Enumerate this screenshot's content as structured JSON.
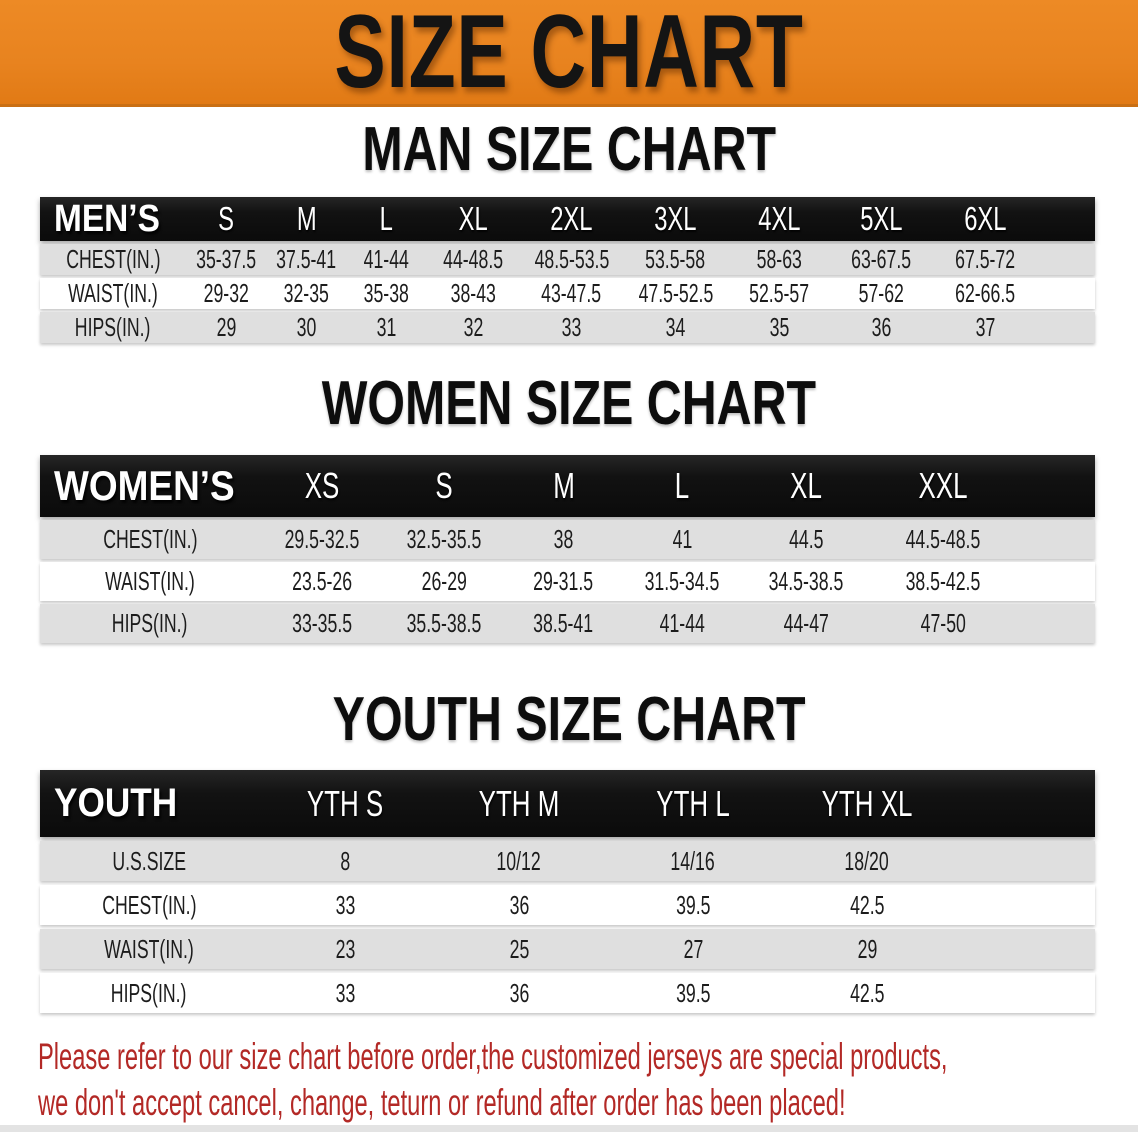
{
  "banner": {
    "title": "SIZE CHART"
  },
  "colors": {
    "banner_orange": "#E8831F",
    "table_header_black": "#111111",
    "row_gray": "#DFDFDF",
    "disclaimer_red": "#B32926"
  },
  "sections": [
    {
      "id": "mens",
      "heading": "MAN SIZE CHART",
      "corner": "MEN’S",
      "columns": [
        "S",
        "M",
        "L",
        "XL",
        "2XL",
        "3XL",
        "4XL",
        "5XL",
        "6XL"
      ],
      "rows": [
        {
          "label": "CHEST(IN.)",
          "values": [
            "35-37.5",
            "37.5-41",
            "41-44",
            "44-48.5",
            "48.5-53.5",
            "53.5-58",
            "58-63",
            "63-67.5",
            "67.5-72"
          ]
        },
        {
          "label": "WAIST(IN.)",
          "values": [
            "29-32",
            "32-35",
            "35-38",
            "38-43",
            "43-47.5",
            "47.5-52.5",
            "52.5-57",
            "57-62",
            "62-66.5"
          ]
        },
        {
          "label": "HIPS(IN.)",
          "values": [
            "29",
            "30",
            "31",
            "32",
            "33",
            "34",
            "35",
            "36",
            "37"
          ]
        }
      ]
    },
    {
      "id": "womens",
      "heading": "WOMEN SIZE CHART",
      "corner": "WOMEN’S",
      "columns": [
        "XS",
        "S",
        "M",
        "L",
        "XL",
        "XXL"
      ],
      "rows": [
        {
          "label": "CHEST(IN.)",
          "values": [
            "29.5-32.5",
            "32.5-35.5",
            "38",
            "41",
            "44.5",
            "44.5-48.5"
          ]
        },
        {
          "label": "WAIST(IN.)",
          "values": [
            "23.5-26",
            "26-29",
            "29-31.5",
            "31.5-34.5",
            "34.5-38.5",
            "38.5-42.5"
          ]
        },
        {
          "label": "HIPS(IN.)",
          "values": [
            "33-35.5",
            "35.5-38.5",
            "38.5-41",
            "41-44",
            "44-47",
            "47-50"
          ]
        }
      ]
    },
    {
      "id": "youth",
      "heading": "YOUTH SIZE CHART",
      "corner": "YOUTH",
      "columns": [
        "YTH S",
        "YTH M",
        "YTH L",
        "YTH XL"
      ],
      "rows": [
        {
          "label": "U.S.SIZE",
          "values": [
            "8",
            "10/12",
            "14/16",
            "18/20"
          ]
        },
        {
          "label": "CHEST(IN.)",
          "values": [
            "33",
            "36",
            "39.5",
            "42.5"
          ]
        },
        {
          "label": "WAIST(IN.)",
          "values": [
            "23",
            "25",
            "27",
            "29"
          ]
        },
        {
          "label": "HIPS(IN.)",
          "values": [
            "33",
            "36",
            "39.5",
            "42.5"
          ]
        }
      ]
    }
  ],
  "disclaimer": {
    "line1": "Please refer to our size chart before order,the customized jerseys are special products,",
    "line2": "we don't accept cancel, change, teturn or refund after order has been placed!"
  }
}
